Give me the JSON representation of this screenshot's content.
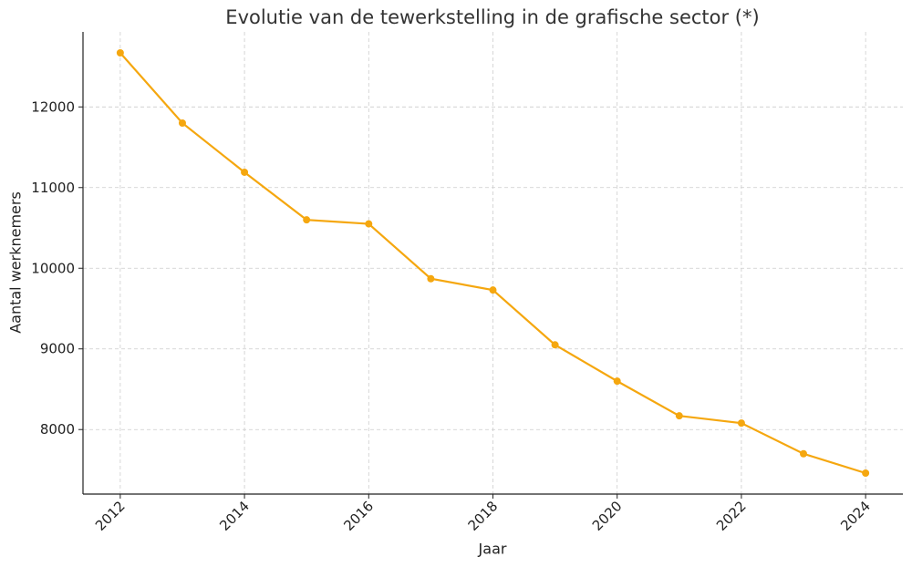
{
  "chart_data": {
    "type": "line",
    "title": "Evolutie van de tewerkstelling in de grafische sector (*)",
    "x_label": "Jaar",
    "y_label": "Aantal werknemers",
    "x": [
      2012,
      2013,
      2014,
      2015,
      2016,
      2017,
      2018,
      2019,
      2020,
      2021,
      2022,
      2023,
      2024
    ],
    "series": [
      {
        "color": "#f5a70f",
        "values": [
          12670,
          11800,
          11190,
          10600,
          10550,
          9870,
          9730,
          9050,
          8600,
          8170,
          8080,
          7700,
          7460
        ]
      }
    ],
    "xlim": [
      2011.4,
      2024.6
    ],
    "ylim": [
      7200,
      12930
    ],
    "xticks": [
      2012,
      2014,
      2016,
      2018,
      2020,
      2022,
      2024
    ],
    "yticks": [
      8000,
      9000,
      10000,
      11000,
      12000
    ],
    "grid": true
  }
}
